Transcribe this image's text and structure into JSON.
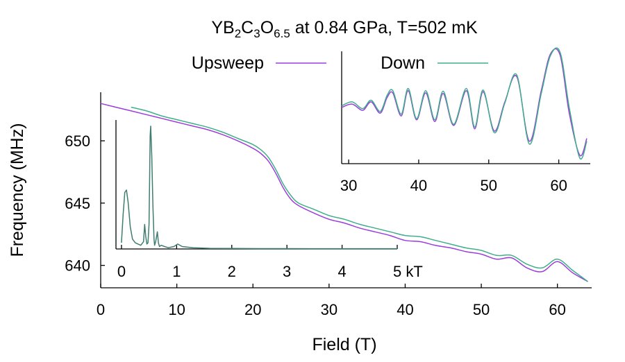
{
  "chart_data": {
    "type": "line",
    "title": {
      "base1": "YB",
      "sub1": "2",
      "base2": "C",
      "sub2": "3",
      "base3": "O",
      "sub3": "6.5",
      "rest": " at 0.84 GPa, T=502 mK"
    },
    "xlabel": "Field (T)",
    "ylabel": "Frequency (MHz)",
    "xlim": [
      0,
      64.5
    ],
    "ylim": [
      638.2,
      653.9
    ],
    "xticks": [
      0,
      10,
      20,
      30,
      40,
      50,
      60
    ],
    "yticks": [
      640,
      645,
      650
    ],
    "legend": {
      "placement": "top",
      "entries": [
        {
          "name": "Upsweep",
          "color": "#9b3ddb"
        },
        {
          "name": "Down",
          "color": "#3fae8c"
        }
      ]
    },
    "series": [
      {
        "name": "Upsweep",
        "color": "#9b3ddb",
        "x": [
          0,
          2,
          4,
          6,
          8,
          10,
          12,
          14,
          16,
          18,
          20,
          21,
          22,
          23,
          24,
          25,
          26,
          28,
          30,
          32,
          34,
          36,
          38,
          40,
          42,
          44,
          46,
          48,
          50,
          52,
          54,
          56,
          58,
          60,
          62,
          64
        ],
        "y": [
          653.0,
          652.7,
          652.4,
          652.1,
          651.8,
          651.5,
          651.2,
          650.9,
          650.5,
          650.0,
          649.4,
          649.0,
          648.4,
          647.4,
          646.2,
          645.3,
          644.8,
          644.2,
          643.7,
          643.4,
          643.0,
          642.7,
          642.4,
          642.0,
          641.9,
          641.6,
          641.4,
          641.1,
          640.9,
          640.5,
          640.6,
          639.8,
          639.5,
          640.3,
          639.4,
          638.7
        ]
      },
      {
        "name": "Down",
        "color": "#3fae8c",
        "x": [
          4,
          6,
          8,
          10,
          12,
          14,
          16,
          18,
          20,
          21,
          22,
          23,
          24,
          25,
          26,
          28,
          30,
          32,
          34,
          36,
          38,
          40,
          42,
          44,
          46,
          48,
          50,
          52,
          54,
          56,
          58,
          60,
          62,
          64
        ],
        "y": [
          652.7,
          652.4,
          652.0,
          651.7,
          651.4,
          651.1,
          650.7,
          650.2,
          649.7,
          649.3,
          648.7,
          647.7,
          646.5,
          645.6,
          645.0,
          644.5,
          644.0,
          643.7,
          643.3,
          643.0,
          642.7,
          642.4,
          642.3,
          642.0,
          641.7,
          641.4,
          641.2,
          640.8,
          640.8,
          640.1,
          639.8,
          640.5,
          639.6,
          638.7
        ]
      }
    ],
    "insets": [
      {
        "name": "fft-inset",
        "type": "line",
        "xlabel_suffix": "kT",
        "xlim": [
          -0.1,
          5.0
        ],
        "xticks": [
          0,
          1,
          2,
          3,
          4,
          5
        ],
        "xtick_labels": [
          "0",
          "1",
          "2",
          "3",
          "4",
          "5 kT"
        ],
        "ylim": [
          0,
          1.05
        ],
        "series": [
          {
            "name": "Spectrum",
            "color": "#3e7d70",
            "x": [
              0,
              0.03,
              0.06,
              0.09,
              0.12,
              0.16,
              0.2,
              0.25,
              0.3,
              0.35,
              0.4,
              0.42,
              0.44,
              0.46,
              0.48,
              0.5,
              0.51,
              0.52,
              0.53,
              0.55,
              0.57,
              0.59,
              0.6,
              0.62,
              0.65,
              0.67,
              0.69,
              0.72,
              0.78,
              0.85,
              0.95,
              1.02,
              1.1,
              1.3,
              1.6,
              2.0,
              2.5,
              3.0,
              3.5,
              4.0,
              4.5,
              5.0
            ],
            "y": [
              0.05,
              0.28,
              0.46,
              0.48,
              0.38,
              0.18,
              0.08,
              0.05,
              0.04,
              0.03,
              0.06,
              0.2,
              0.1,
              0.04,
              0.05,
              0.2,
              0.55,
              0.92,
              1.0,
              0.75,
              0.35,
              0.08,
              0.03,
              0.06,
              0.14,
              0.05,
              0.02,
              0.03,
              0.02,
              0.01,
              0.02,
              0.04,
              0.02,
              0.01,
              0.005,
              0.004,
              0.003,
              0.003,
              0.002,
              0.002,
              0.002,
              0.002
            ]
          }
        ]
      },
      {
        "name": "oscillation-inset",
        "type": "line",
        "xlim": [
          29,
          64.5
        ],
        "xticks": [
          30,
          40,
          50,
          60
        ],
        "ylim": [
          -1.0,
          1.0
        ],
        "series": [
          {
            "name": "Upsweep",
            "color": "#9b3ddb",
            "x": [
              29,
              30.5,
              32,
              33.2,
              34.5,
              35.5,
              36.3,
              37.5,
              38.5,
              39.7,
              41,
              42.3,
              43.5,
              45,
              46.8,
              48,
              49.2,
              50.8,
              52.3,
              54,
              55.8,
              57.5,
              58.8,
              60.2,
              61.5,
              63,
              64
            ],
            "y": [
              0.0,
              0.06,
              -0.05,
              0.1,
              -0.1,
              0.18,
              0.26,
              -0.15,
              0.3,
              -0.22,
              0.26,
              -0.25,
              0.25,
              -0.32,
              0.3,
              -0.38,
              0.28,
              -0.42,
              0.1,
              0.55,
              -0.6,
              0.3,
              0.95,
              0.93,
              -0.1,
              -0.85,
              -0.55
            ]
          },
          {
            "name": "Down",
            "color": "#3fae8c",
            "x": [
              29,
              30.5,
              32,
              33.2,
              34.5,
              35.5,
              36.3,
              37.5,
              38.5,
              39.7,
              41,
              42.3,
              43.5,
              45,
              46.8,
              48,
              49.2,
              50.8,
              52.3,
              54,
              55.8,
              57.5,
              58.8,
              60.2,
              61.5,
              63,
              64
            ],
            "y": [
              0.03,
              0.1,
              -0.02,
              0.13,
              -0.07,
              0.22,
              0.3,
              -0.12,
              0.34,
              -0.2,
              0.3,
              -0.22,
              0.29,
              -0.3,
              0.34,
              -0.35,
              0.31,
              -0.45,
              0.08,
              0.58,
              -0.65,
              0.25,
              0.92,
              0.98,
              0.0,
              -0.9,
              -0.6
            ]
          }
        ]
      }
    ]
  }
}
